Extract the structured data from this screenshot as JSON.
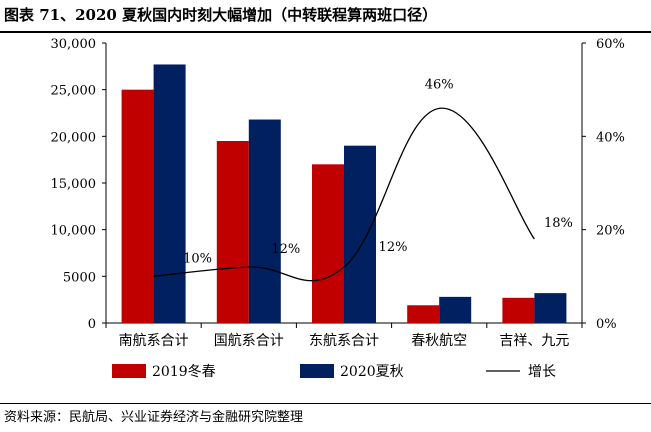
{
  "figure": {
    "title": "图表 71、2020 夏秋国内时刻大幅增加（中转联程算两班口径）",
    "source": "资料来源：民航局、兴业证券经济与金融研究院整理"
  },
  "chart_data": {
    "type": "bar",
    "categories": [
      "南航系合计",
      "国航系合计",
      "东航系合计",
      "春秋航空",
      "吉祥、九元"
    ],
    "series": [
      {
        "name": "2019冬春",
        "type": "bar",
        "axis": "left",
        "color": "#c00000",
        "values": [
          25000,
          19500,
          17000,
          1900,
          2700
        ]
      },
      {
        "name": "2020夏秋",
        "type": "bar",
        "axis": "left",
        "color": "#002060",
        "values": [
          27700,
          21800,
          19000,
          2800,
          3200
        ]
      },
      {
        "name": "增长",
        "type": "line",
        "axis": "right",
        "color": "#000000",
        "values": [
          10,
          12,
          12,
          46,
          18
        ],
        "labels": [
          "10%",
          "12%",
          "12%",
          "46%",
          "18%"
        ]
      }
    ],
    "y_left": {
      "min": 0,
      "max": 30000,
      "ticks": [
        0,
        5000,
        10000,
        15000,
        20000,
        25000,
        30000
      ],
      "tick_labels": [
        "0",
        "5000",
        "10,000",
        "15,000",
        "20,000",
        "25,000",
        "30,000"
      ]
    },
    "y_right": {
      "min": 0,
      "max": 60,
      "ticks": [
        0,
        20,
        40,
        60
      ],
      "tick_labels": [
        "0%",
        "20%",
        "40%",
        "60%"
      ]
    },
    "grid": false,
    "legend_position": "bottom"
  }
}
